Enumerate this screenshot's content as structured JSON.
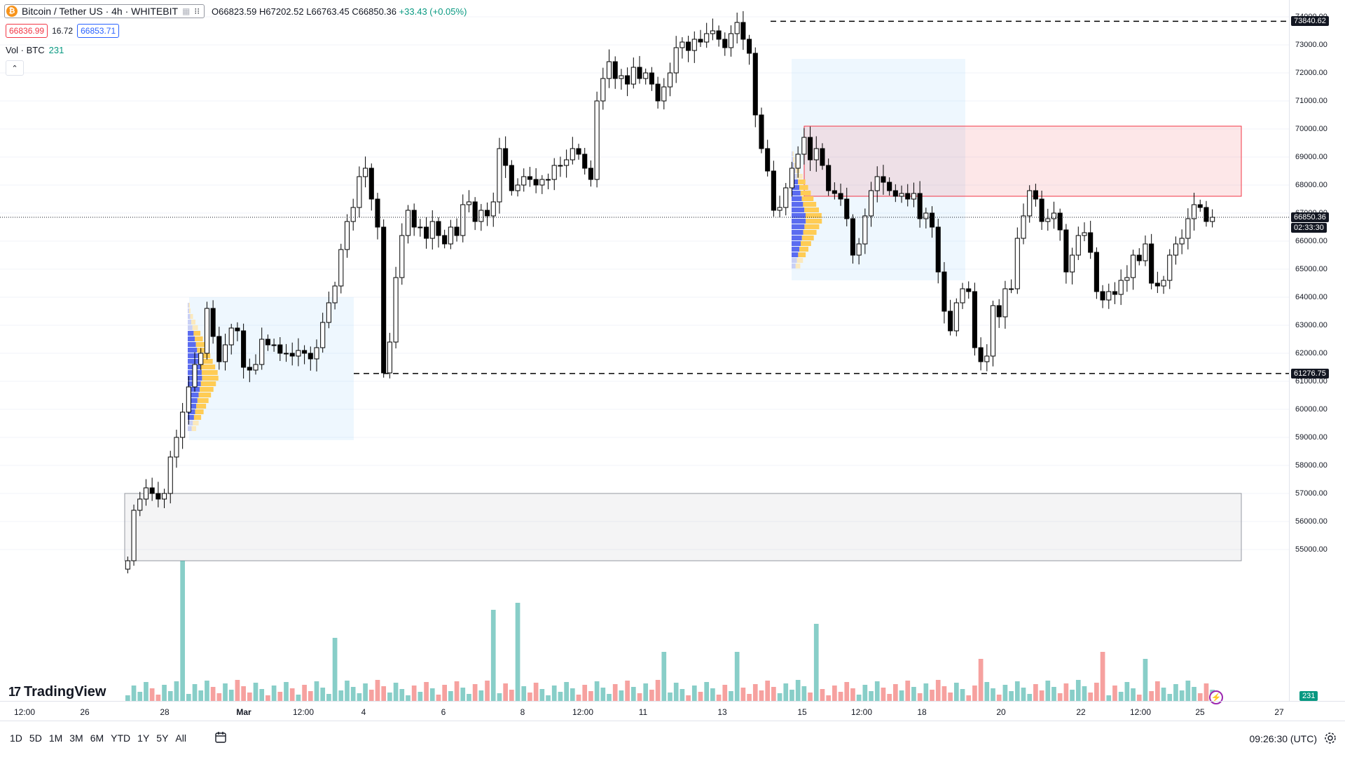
{
  "header": {
    "symbol": "Bitcoin / Tether US · 4h · WHITEBIT",
    "ohlc_open": "O66823.59",
    "ohlc_high": "H67202.52",
    "ohlc_low": "L66763.45",
    "ohlc_close": "C66850.36",
    "ohlc_change": "+33.43 (+0.05%)",
    "bid": "66836.99",
    "spread": "16.72",
    "ask": "66853.71",
    "volume_label": "Vol · BTC",
    "volume_value": "231"
  },
  "colors": {
    "up": "#ffffff",
    "down": "#000000",
    "vol_up": "#26a69a",
    "vol_down": "#ef5350",
    "zone_red": "#f23645",
    "zone_blue": "#2196f3",
    "zone_gray": "#9598a1"
  },
  "price_axis": {
    "labels": [
      "74000.00",
      "73000.00",
      "72000.00",
      "71000.00",
      "70000.00",
      "69000.00",
      "68000.00",
      "67000.00",
      "66000.00",
      "65000.00",
      "64000.00",
      "63000.00",
      "62000.00",
      "61000.00",
      "60000.00",
      "59000.00",
      "58000.00",
      "57000.00",
      "56000.00",
      "55000.00"
    ],
    "tag_high": "73840.62",
    "tag_current": "66850.36",
    "tag_countdown": "02:33:30",
    "tag_low": "61276.75",
    "tag_volume": "231"
  },
  "time_axis": {
    "labels": [
      {
        "text": "12:00",
        "bold": false
      },
      {
        "text": "26",
        "bold": false
      },
      {
        "text": "28",
        "bold": false
      },
      {
        "text": "Mar",
        "bold": true
      },
      {
        "text": "12:00",
        "bold": false
      },
      {
        "text": "4",
        "bold": false
      },
      {
        "text": "6",
        "bold": false
      },
      {
        "text": "8",
        "bold": false
      },
      {
        "text": "12:00",
        "bold": false
      },
      {
        "text": "11",
        "bold": false
      },
      {
        "text": "13",
        "bold": false
      },
      {
        "text": "15",
        "bold": false
      },
      {
        "text": "12:00",
        "bold": false
      },
      {
        "text": "18",
        "bold": false
      },
      {
        "text": "20",
        "bold": false
      },
      {
        "text": "22",
        "bold": false
      },
      {
        "text": "12:00",
        "bold": false
      },
      {
        "text": "25",
        "bold": false
      },
      {
        "text": "27",
        "bold": false
      }
    ]
  },
  "bottom_bar": {
    "ranges": [
      "1D",
      "5D",
      "1M",
      "3M",
      "6M",
      "YTD",
      "1Y",
      "5Y",
      "All"
    ],
    "clock": "09:26:30 (UTC)"
  },
  "branding": {
    "logo_text": "TradingView",
    "logo_mark": "17"
  },
  "chart_data": {
    "type": "candlestick",
    "timeframe": "4h",
    "ylim": [
      54500,
      74400
    ],
    "closes": [
      54600,
      56400,
      56800,
      57200,
      57000,
      56800,
      57000,
      58300,
      59000,
      59900,
      60800,
      61600,
      62000,
      63600,
      62600,
      61700,
      62300,
      62900,
      62800,
      61500,
      61400,
      61600,
      62500,
      62300,
      62300,
      62000,
      62000,
      61900,
      62100,
      62000,
      61800,
      62200,
      63100,
      63800,
      64400,
      65700,
      66700,
      67200,
      68300,
      68600,
      67500,
      66500,
      61300,
      62400,
      64700,
      66200,
      67100,
      66500,
      66500,
      66100,
      66700,
      66200,
      65900,
      66500,
      66200,
      67300,
      67400,
      66700,
      67100,
      66900,
      67400,
      69300,
      68700,
      67800,
      68000,
      68300,
      68200,
      68000,
      68200,
      68200,
      68700,
      68700,
      68900,
      69300,
      69100,
      68600,
      68200,
      71000,
      71800,
      72400,
      71800,
      71900,
      71600,
      72200,
      71800,
      72000,
      71600,
      71000,
      71500,
      72000,
      72900,
      73100,
      72800,
      73200,
      73100,
      73400,
      73500,
      73200,
      72900,
      73400,
      73800,
      73200,
      72700,
      70500,
      69300,
      68500,
      67100,
      67200,
      67900,
      68600,
      69100,
      69700,
      68900,
      69300,
      68700,
      67800,
      67700,
      67500,
      66800,
      65500,
      65900,
      66900,
      67800,
      68300,
      68100,
      67800,
      67600,
      67700,
      67500,
      67700,
      66800,
      67000,
      66500,
      64900,
      63500,
      62800,
      63800,
      64300,
      64200,
      62200,
      61700,
      61900,
      63700,
      63300,
      64300,
      64300,
      66100,
      66900,
      67800,
      67500,
      66700,
      66800,
      67000,
      66400,
      64900,
      65500,
      66200,
      66300,
      65600,
      64200,
      63900,
      64200,
      64100,
      64600,
      64700,
      65500,
      65300,
      65900,
      64500,
      64400,
      64600,
      65500,
      65900,
      66100,
      66800,
      67300,
      67200,
      66700,
      66850
    ],
    "volume_peaks_note": "volume shown as histogram on same pane",
    "levels": [
      {
        "name": "high-level",
        "price": 73840.62
      },
      {
        "name": "low-level",
        "price": 61276.75
      }
    ],
    "zones": [
      {
        "name": "supply-zone",
        "from_price": 67600,
        "to_price": 70100,
        "color": "red"
      },
      {
        "name": "range-zone-1",
        "from_price": 58900,
        "to_price": 64000,
        "color": "blue"
      },
      {
        "name": "range-zone-2",
        "from_price": 64600,
        "to_price": 72500,
        "color": "blue"
      },
      {
        "name": "volume-zone",
        "from_price": 54600,
        "to_price": 57000,
        "color": "gray"
      }
    ]
  }
}
